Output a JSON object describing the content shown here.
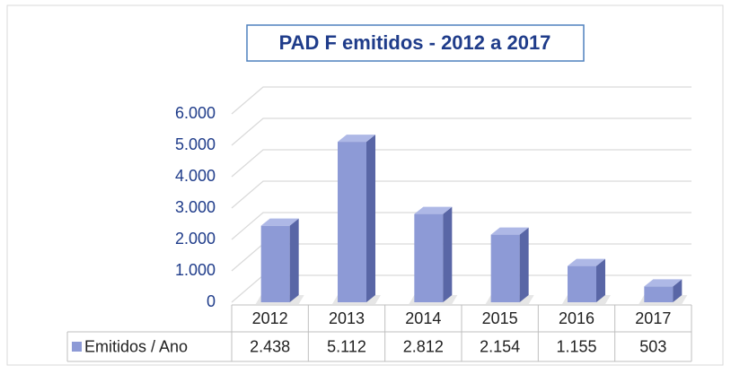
{
  "chart_data": {
    "type": "bar3d",
    "title": "PAD F emitidos  - 2012 a 2017",
    "categories": [
      "2012",
      "2013",
      "2014",
      "2015",
      "2016",
      "2017"
    ],
    "series": [
      {
        "name": "Emitidos / Ano",
        "color": "#8d9ad6",
        "values": [
          2438,
          5112,
          2812,
          2154,
          1155,
          503
        ],
        "value_labels": [
          "2.438",
          "5.112",
          "2.812",
          "2.154",
          "1.155",
          "503"
        ]
      }
    ],
    "ylim": [
      0,
      6000
    ],
    "yticks": [
      0,
      {
        "value": 1000,
        "label": "1.000"
      },
      {
        "value": 2000,
        "label": "2.000"
      },
      {
        "value": 3000,
        "label": "3.000"
      },
      {
        "value": 4000,
        "label": "4.000"
      },
      {
        "value": 5000,
        "label": "5.000"
      },
      {
        "value": 6000,
        "label": "6.000"
      }
    ],
    "grid": true,
    "data_table": true
  }
}
